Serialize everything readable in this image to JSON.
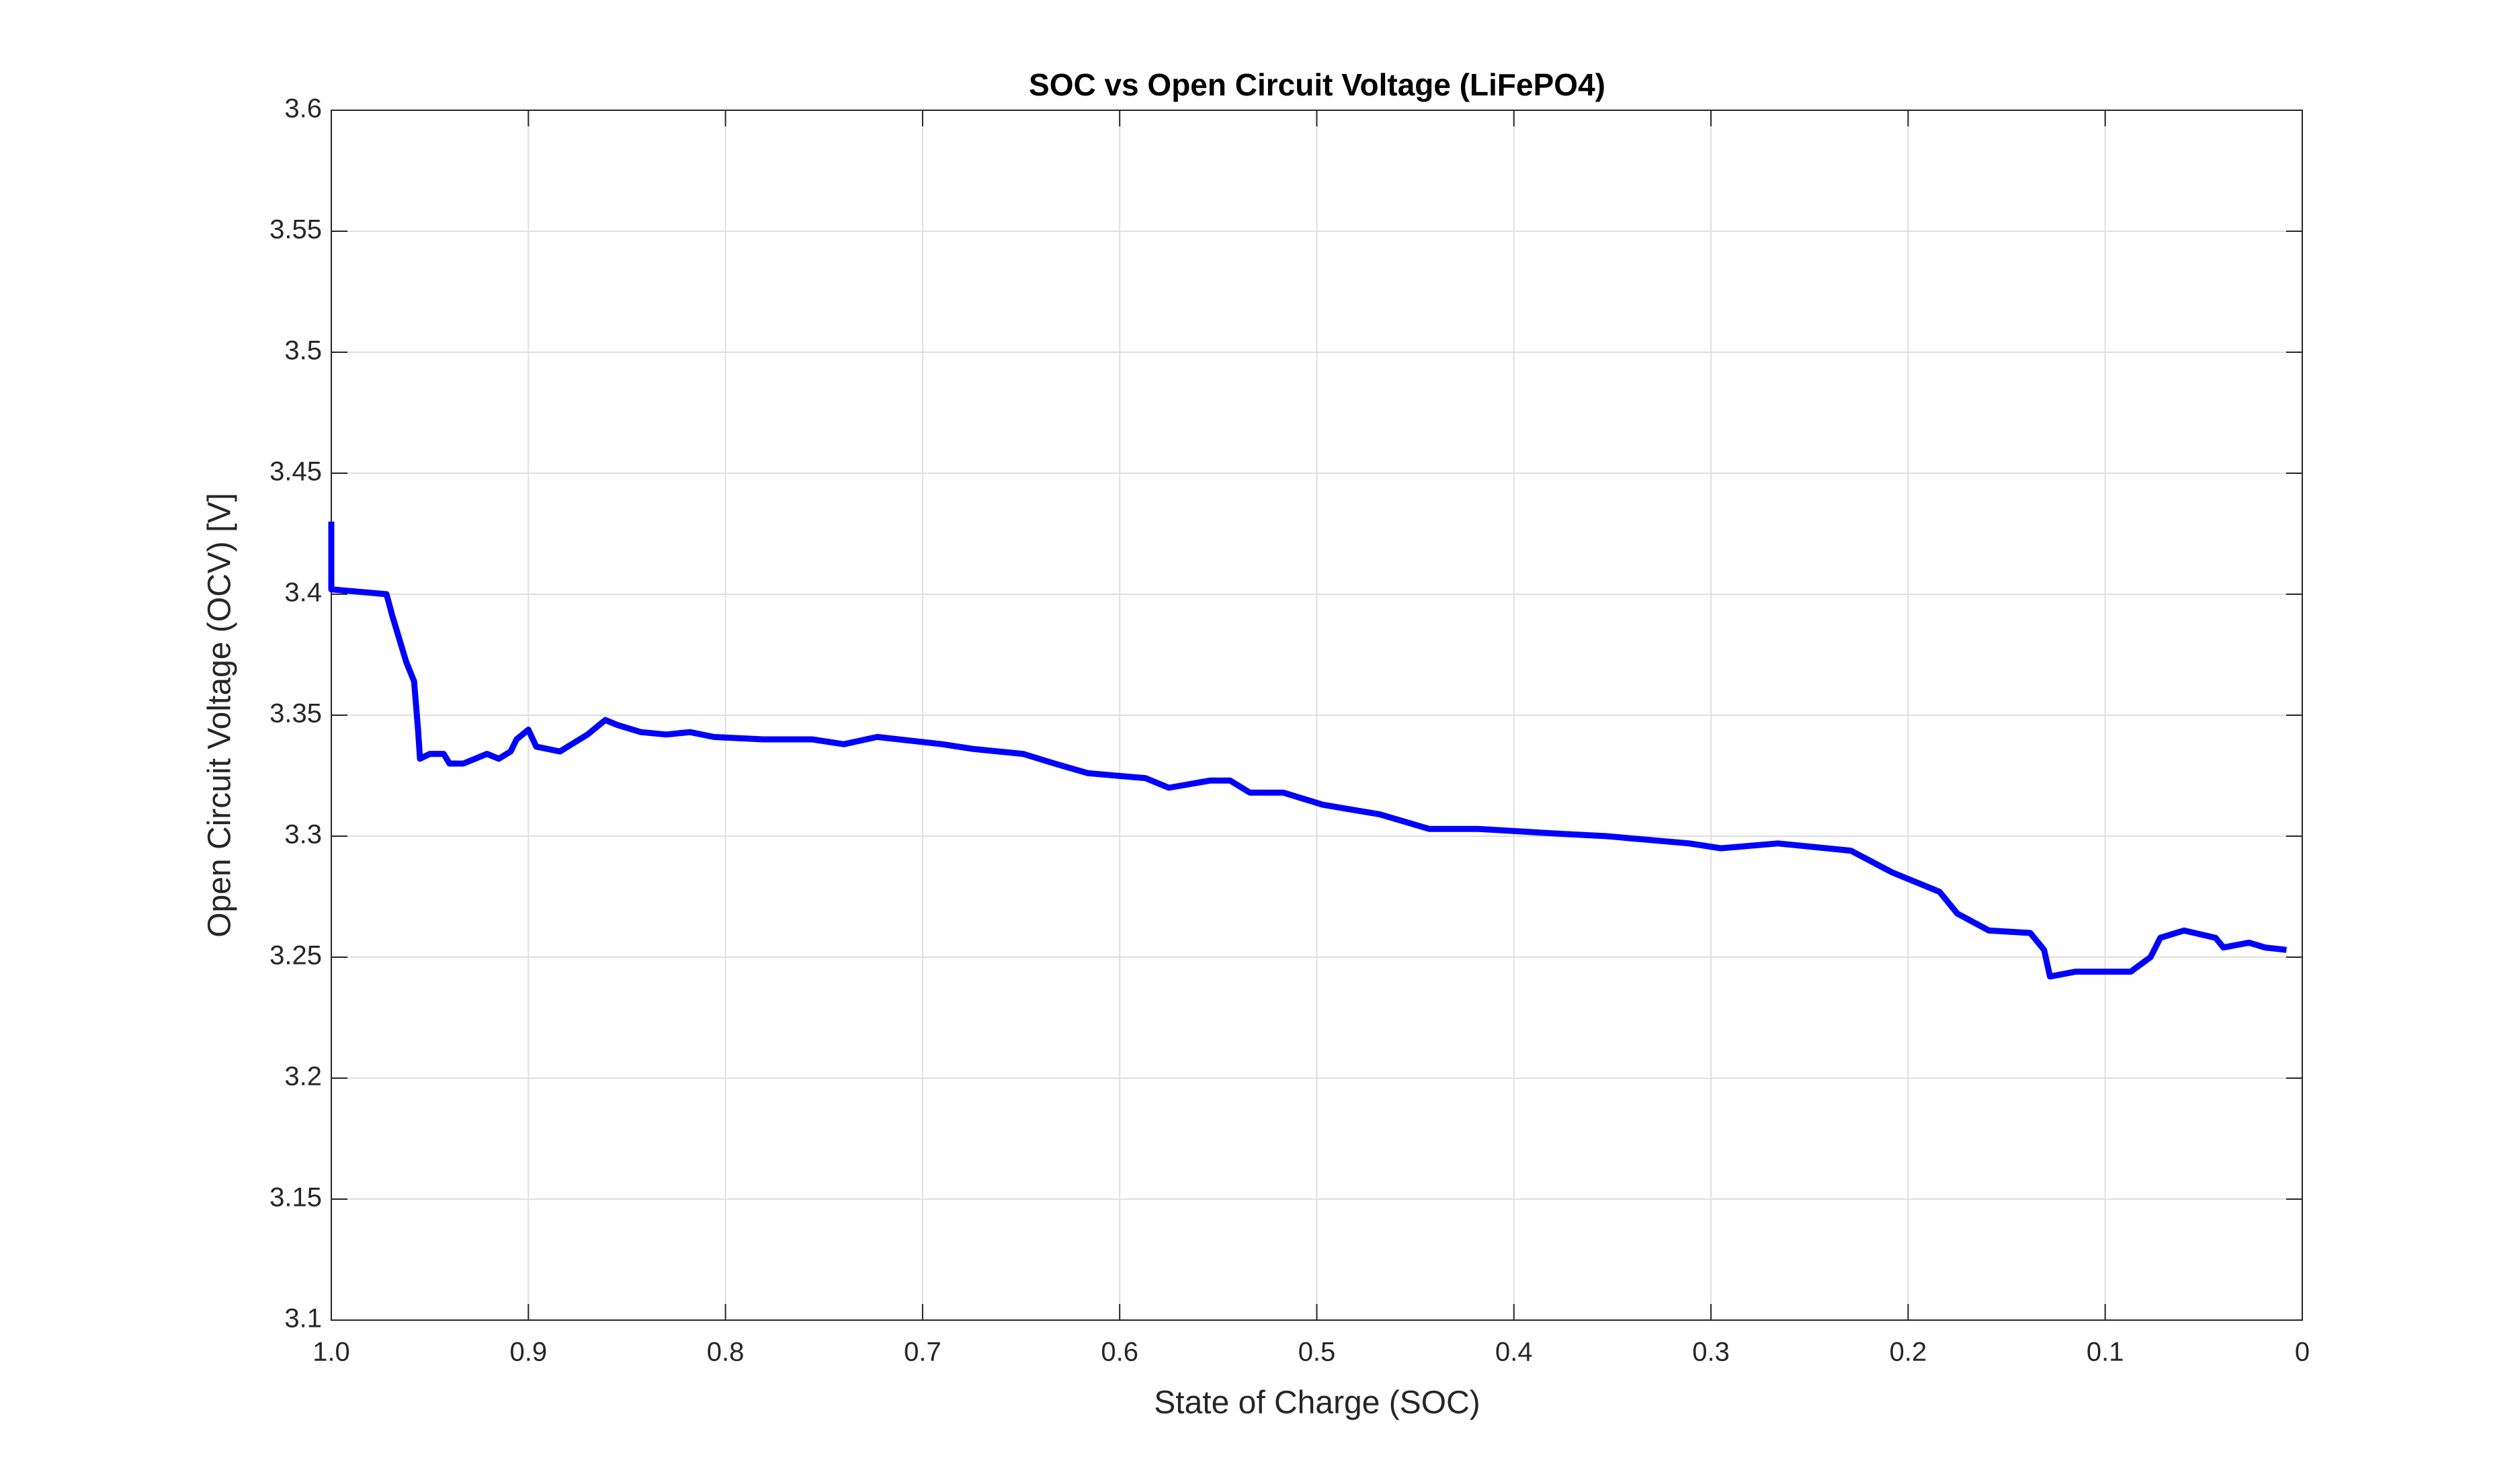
{
  "chart_data": {
    "type": "line",
    "title": "SOC vs Open Circuit Voltage (LiFePO4)",
    "x_label": "State of Charge (SOC)",
    "y_label": "Open Circuit Voltage (OCV) [V]",
    "xlim": [
      1,
      0
    ],
    "ylim": [
      3.1,
      3.6
    ],
    "xticks": [
      {
        "value": 1,
        "label": "1.0"
      },
      0.9,
      0.8,
      0.7,
      0.6,
      0.5,
      0.4,
      0.3,
      0.2,
      0.1,
      0
    ],
    "yticks": [
      3.1,
      3.15,
      3.2,
      3.25,
      3.3,
      3.35,
      3.4,
      3.45,
      3.5,
      3.55,
      3.6
    ],
    "grid": true,
    "series": [
      {
        "color": "#0000ff",
        "x": [
          1.0,
          1.0,
          0.972,
          0.969,
          0.962,
          0.958,
          0.956,
          0.955,
          0.95,
          0.943,
          0.94,
          0.933,
          0.927,
          0.921,
          0.915,
          0.909,
          0.906,
          0.9,
          0.896,
          0.884,
          0.878,
          0.87,
          0.861,
          0.855,
          0.843,
          0.83,
          0.818,
          0.806,
          0.781,
          0.756,
          0.74,
          0.723,
          0.69,
          0.674,
          0.649,
          0.633,
          0.616,
          0.587,
          0.575,
          0.554,
          0.544,
          0.534,
          0.517,
          0.497,
          0.468,
          0.443,
          0.418,
          0.377,
          0.353,
          0.311,
          0.295,
          0.266,
          0.229,
          0.208,
          0.184,
          0.175,
          0.159,
          0.138,
          0.131,
          0.128,
          0.115,
          0.097,
          0.087,
          0.077,
          0.072,
          0.06,
          0.044,
          0.04,
          0.027,
          0.019,
          0.008
        ],
        "values": [
          3.43,
          3.402,
          3.4,
          3.391,
          3.372,
          3.364,
          3.344,
          3.332,
          3.334,
          3.334,
          3.33,
          3.33,
          3.332,
          3.334,
          3.332,
          3.335,
          3.34,
          3.344,
          3.337,
          3.335,
          3.338,
          3.342,
          3.348,
          3.346,
          3.343,
          3.342,
          3.343,
          3.341,
          3.34,
          3.34,
          3.338,
          3.341,
          3.338,
          3.336,
          3.334,
          3.33,
          3.326,
          3.324,
          3.32,
          3.323,
          3.323,
          3.318,
          3.318,
          3.313,
          3.309,
          3.303,
          3.303,
          3.301,
          3.3,
          3.297,
          3.295,
          3.297,
          3.294,
          3.285,
          3.277,
          3.268,
          3.261,
          3.26,
          3.253,
          3.242,
          3.244,
          3.244,
          3.244,
          3.25,
          3.258,
          3.261,
          3.258,
          3.254,
          3.256,
          3.254,
          3.253
        ]
      }
    ]
  }
}
